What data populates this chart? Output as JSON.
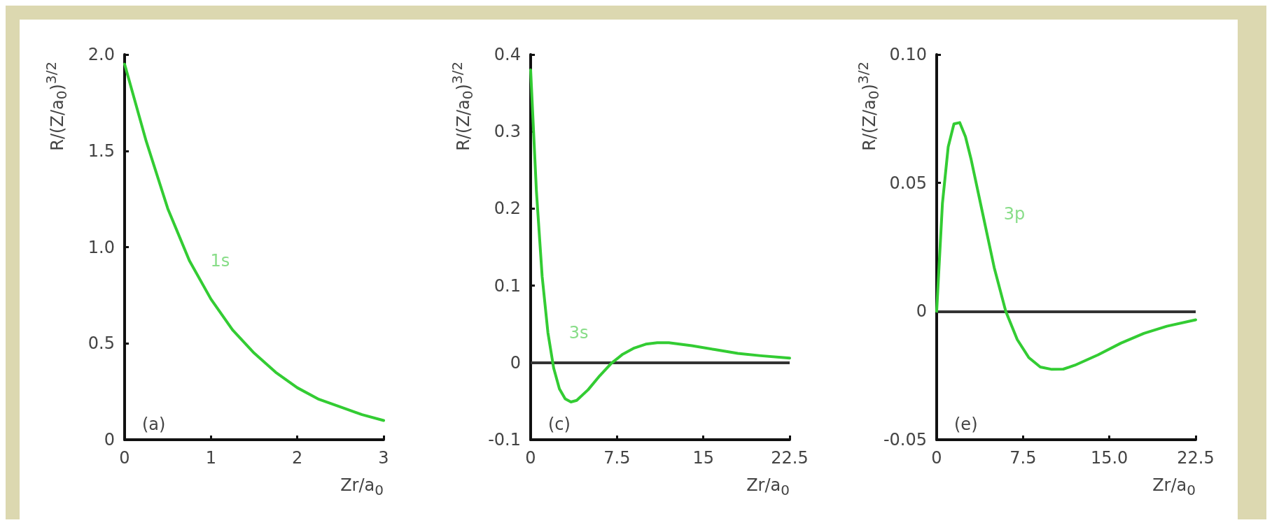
{
  "chart_data": [
    {
      "type": "line",
      "xlabel": "Zr/a$_{0}$",
      "ylabel": "R/(Z/a$_{0}$)$^{3/2}$",
      "xlim": [
        0,
        3
      ],
      "xticks": [
        0,
        1,
        2,
        3
      ],
      "ylim": [
        0,
        2
      ],
      "yticks": [
        0,
        0.5,
        {
          "value": 1,
          "label": "1.0"
        },
        1.5,
        {
          "value": 2,
          "label": "2.0"
        }
      ],
      "grid": false,
      "series": [
        {
          "name": "1s",
          "color": "#33cc33",
          "x": [
            0,
            0.25,
            0.5,
            0.75,
            1,
            1.25,
            1.5,
            1.75,
            2,
            2.25,
            2.5,
            2.75,
            3
          ],
          "values": [
            1.95,
            1.55,
            1.2,
            0.93,
            0.73,
            0.57,
            0.45,
            0.35,
            0.27,
            0.21,
            0.17,
            0.13,
            0.1
          ]
        }
      ],
      "annotations": [
        "(a)"
      ]
    },
    {
      "type": "line",
      "xlabel": "Zr/a$_{0}$",
      "ylabel": "R/(Z/a$_{0}$)$^{3/2}$",
      "xlim": [
        0,
        22.5
      ],
      "xticks": [
        0,
        7.5,
        15,
        22.5
      ],
      "ylim": [
        -0.1,
        0.4
      ],
      "yticks": [
        -0.1,
        0,
        0.1,
        0.2,
        0.3,
        0.4
      ],
      "grid": false,
      "series": [
        {
          "name": "3s",
          "color": "#33cc33",
          "x": [
            0,
            0.5,
            1,
            1.5,
            2,
            2.5,
            3,
            3.5,
            4,
            5,
            6,
            7,
            8,
            9,
            10,
            11,
            12,
            14,
            16,
            18,
            20,
            22.5
          ],
          "values": [
            0.38,
            0.223,
            0.112,
            0.039,
            -0.007,
            -0.034,
            -0.047,
            -0.051,
            -0.049,
            -0.035,
            -0.017,
            -0.001,
            0.011,
            0.019,
            0.024,
            0.026,
            0.026,
            0.022,
            0.017,
            0.012,
            0.009,
            0.006
          ]
        }
      ],
      "ref_lines": [
        {
          "axis": "y",
          "value": 0,
          "color": "#333333"
        }
      ],
      "annotations": [
        "(c)"
      ]
    },
    {
      "type": "line",
      "xlabel": "Zr/a$_{0}$",
      "ylabel": "R/(Z/a$_{0}$)$^{3/2}$",
      "xlim": [
        0,
        22.5
      ],
      "xticks": [
        0,
        7.5,
        {
          "value": 15,
          "label": "15.0"
        },
        22.5
      ],
      "ylim": [
        -0.05,
        0.1
      ],
      "yticks": [
        -0.05,
        0,
        0.05,
        {
          "value": 0.1,
          "label": "0.10"
        }
      ],
      "grid": false,
      "series": [
        {
          "name": "3p",
          "color": "#33cc33",
          "x": [
            0,
            0.5,
            1,
            1.5,
            2,
            2.5,
            3,
            4,
            5,
            6,
            7,
            8,
            9,
            10,
            11,
            12,
            14,
            16,
            18,
            20,
            22.5
          ],
          "values": [
            0,
            0.042,
            0.064,
            0.073,
            0.0735,
            0.068,
            0.059,
            0.038,
            0.017,
            0,
            -0.011,
            -0.018,
            -0.0217,
            -0.0226,
            -0.0225,
            -0.021,
            -0.017,
            -0.0124,
            -0.0086,
            -0.0058,
            -0.0033
          ]
        }
      ],
      "ref_lines": [
        {
          "axis": "y",
          "value": 0,
          "color": "#333333"
        }
      ],
      "annotations": [
        "(e)"
      ]
    }
  ]
}
